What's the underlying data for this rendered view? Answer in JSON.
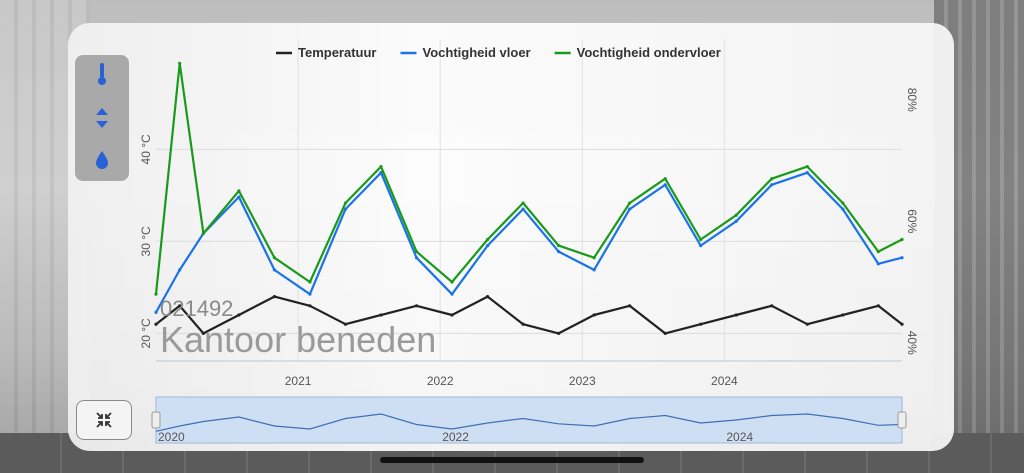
{
  "legend": [
    {
      "name": "Temperatuur",
      "color": "#222222"
    },
    {
      "name": "Vochtigheid vloer",
      "color": "#1a73e8"
    },
    {
      "name": "Vochtigheid ondervloer",
      "color": "#1a9a1a"
    }
  ],
  "sensor": {
    "id": "021492",
    "location": "Kantoor beneden"
  },
  "controls": {
    "temperature_icon": "thermometer-icon",
    "sort_icon": "sort-arrows-icon",
    "humidity_icon": "droplet-icon",
    "zoom_icon": "collapse-icon"
  },
  "chart_data": {
    "type": "line",
    "x_range": [
      "2020-01",
      "2025-04"
    ],
    "x_ticks": [
      "2021",
      "2022",
      "2023",
      "2024"
    ],
    "y_left": {
      "ticks": [
        "20 °C",
        "30 °C",
        "40 °C"
      ],
      "values": [
        20,
        30,
        40
      ],
      "range": [
        17,
        52
      ]
    },
    "y_right": {
      "ticks": [
        "40%",
        "60%",
        "80%"
      ],
      "values": [
        40,
        60,
        80
      ],
      "range": [
        37,
        90
      ]
    },
    "series": [
      {
        "name": "Temperatuur",
        "axis": "left",
        "x": [
          "2020-01",
          "2020-03",
          "2020-05",
          "2020-08",
          "2020-11",
          "2021-02",
          "2021-05",
          "2021-08",
          "2021-11",
          "2022-02",
          "2022-05",
          "2022-08",
          "2022-11",
          "2023-02",
          "2023-05",
          "2023-08",
          "2023-11",
          "2024-02",
          "2024-05",
          "2024-08",
          "2024-11",
          "2025-02",
          "2025-04"
        ],
        "y": [
          21,
          23,
          20,
          22,
          24,
          23,
          21,
          22,
          23,
          22,
          24,
          21,
          20,
          22,
          23,
          20,
          21,
          22,
          23,
          21,
          22,
          23,
          21
        ]
      },
      {
        "name": "Vochtigheid vloer",
        "axis": "right",
        "x": [
          "2020-01",
          "2020-03",
          "2020-05",
          "2020-08",
          "2020-11",
          "2021-02",
          "2021-05",
          "2021-08",
          "2021-11",
          "2022-02",
          "2022-05",
          "2022-08",
          "2022-11",
          "2023-02",
          "2023-05",
          "2023-08",
          "2023-11",
          "2024-02",
          "2024-05",
          "2024-08",
          "2024-11",
          "2025-02",
          "2025-04"
        ],
        "y": [
          45,
          52,
          58,
          64,
          52,
          48,
          62,
          68,
          54,
          48,
          56,
          62,
          55,
          52,
          62,
          66,
          56,
          60,
          66,
          68,
          62,
          53,
          54
        ]
      },
      {
        "name": "Vochtigheid ondervloer",
        "axis": "right",
        "x": [
          "2020-01",
          "2020-03",
          "2020-05",
          "2020-08",
          "2020-11",
          "2021-02",
          "2021-05",
          "2021-08",
          "2021-11",
          "2022-02",
          "2022-05",
          "2022-08",
          "2022-11",
          "2023-02",
          "2023-05",
          "2023-08",
          "2023-11",
          "2024-02",
          "2024-05",
          "2024-08",
          "2024-11",
          "2025-02",
          "2025-04"
        ],
        "y": [
          48,
          86,
          58,
          65,
          54,
          50,
          63,
          69,
          55,
          50,
          57,
          63,
          56,
          54,
          63,
          67,
          57,
          61,
          67,
          69,
          63,
          55,
          57
        ]
      }
    ],
    "navigator": {
      "x_ticks": [
        "2020",
        "2022",
        "2024"
      ],
      "selection": [
        "2020-01",
        "2025-04"
      ]
    },
    "grid": true,
    "legend_placement": "top-center"
  }
}
